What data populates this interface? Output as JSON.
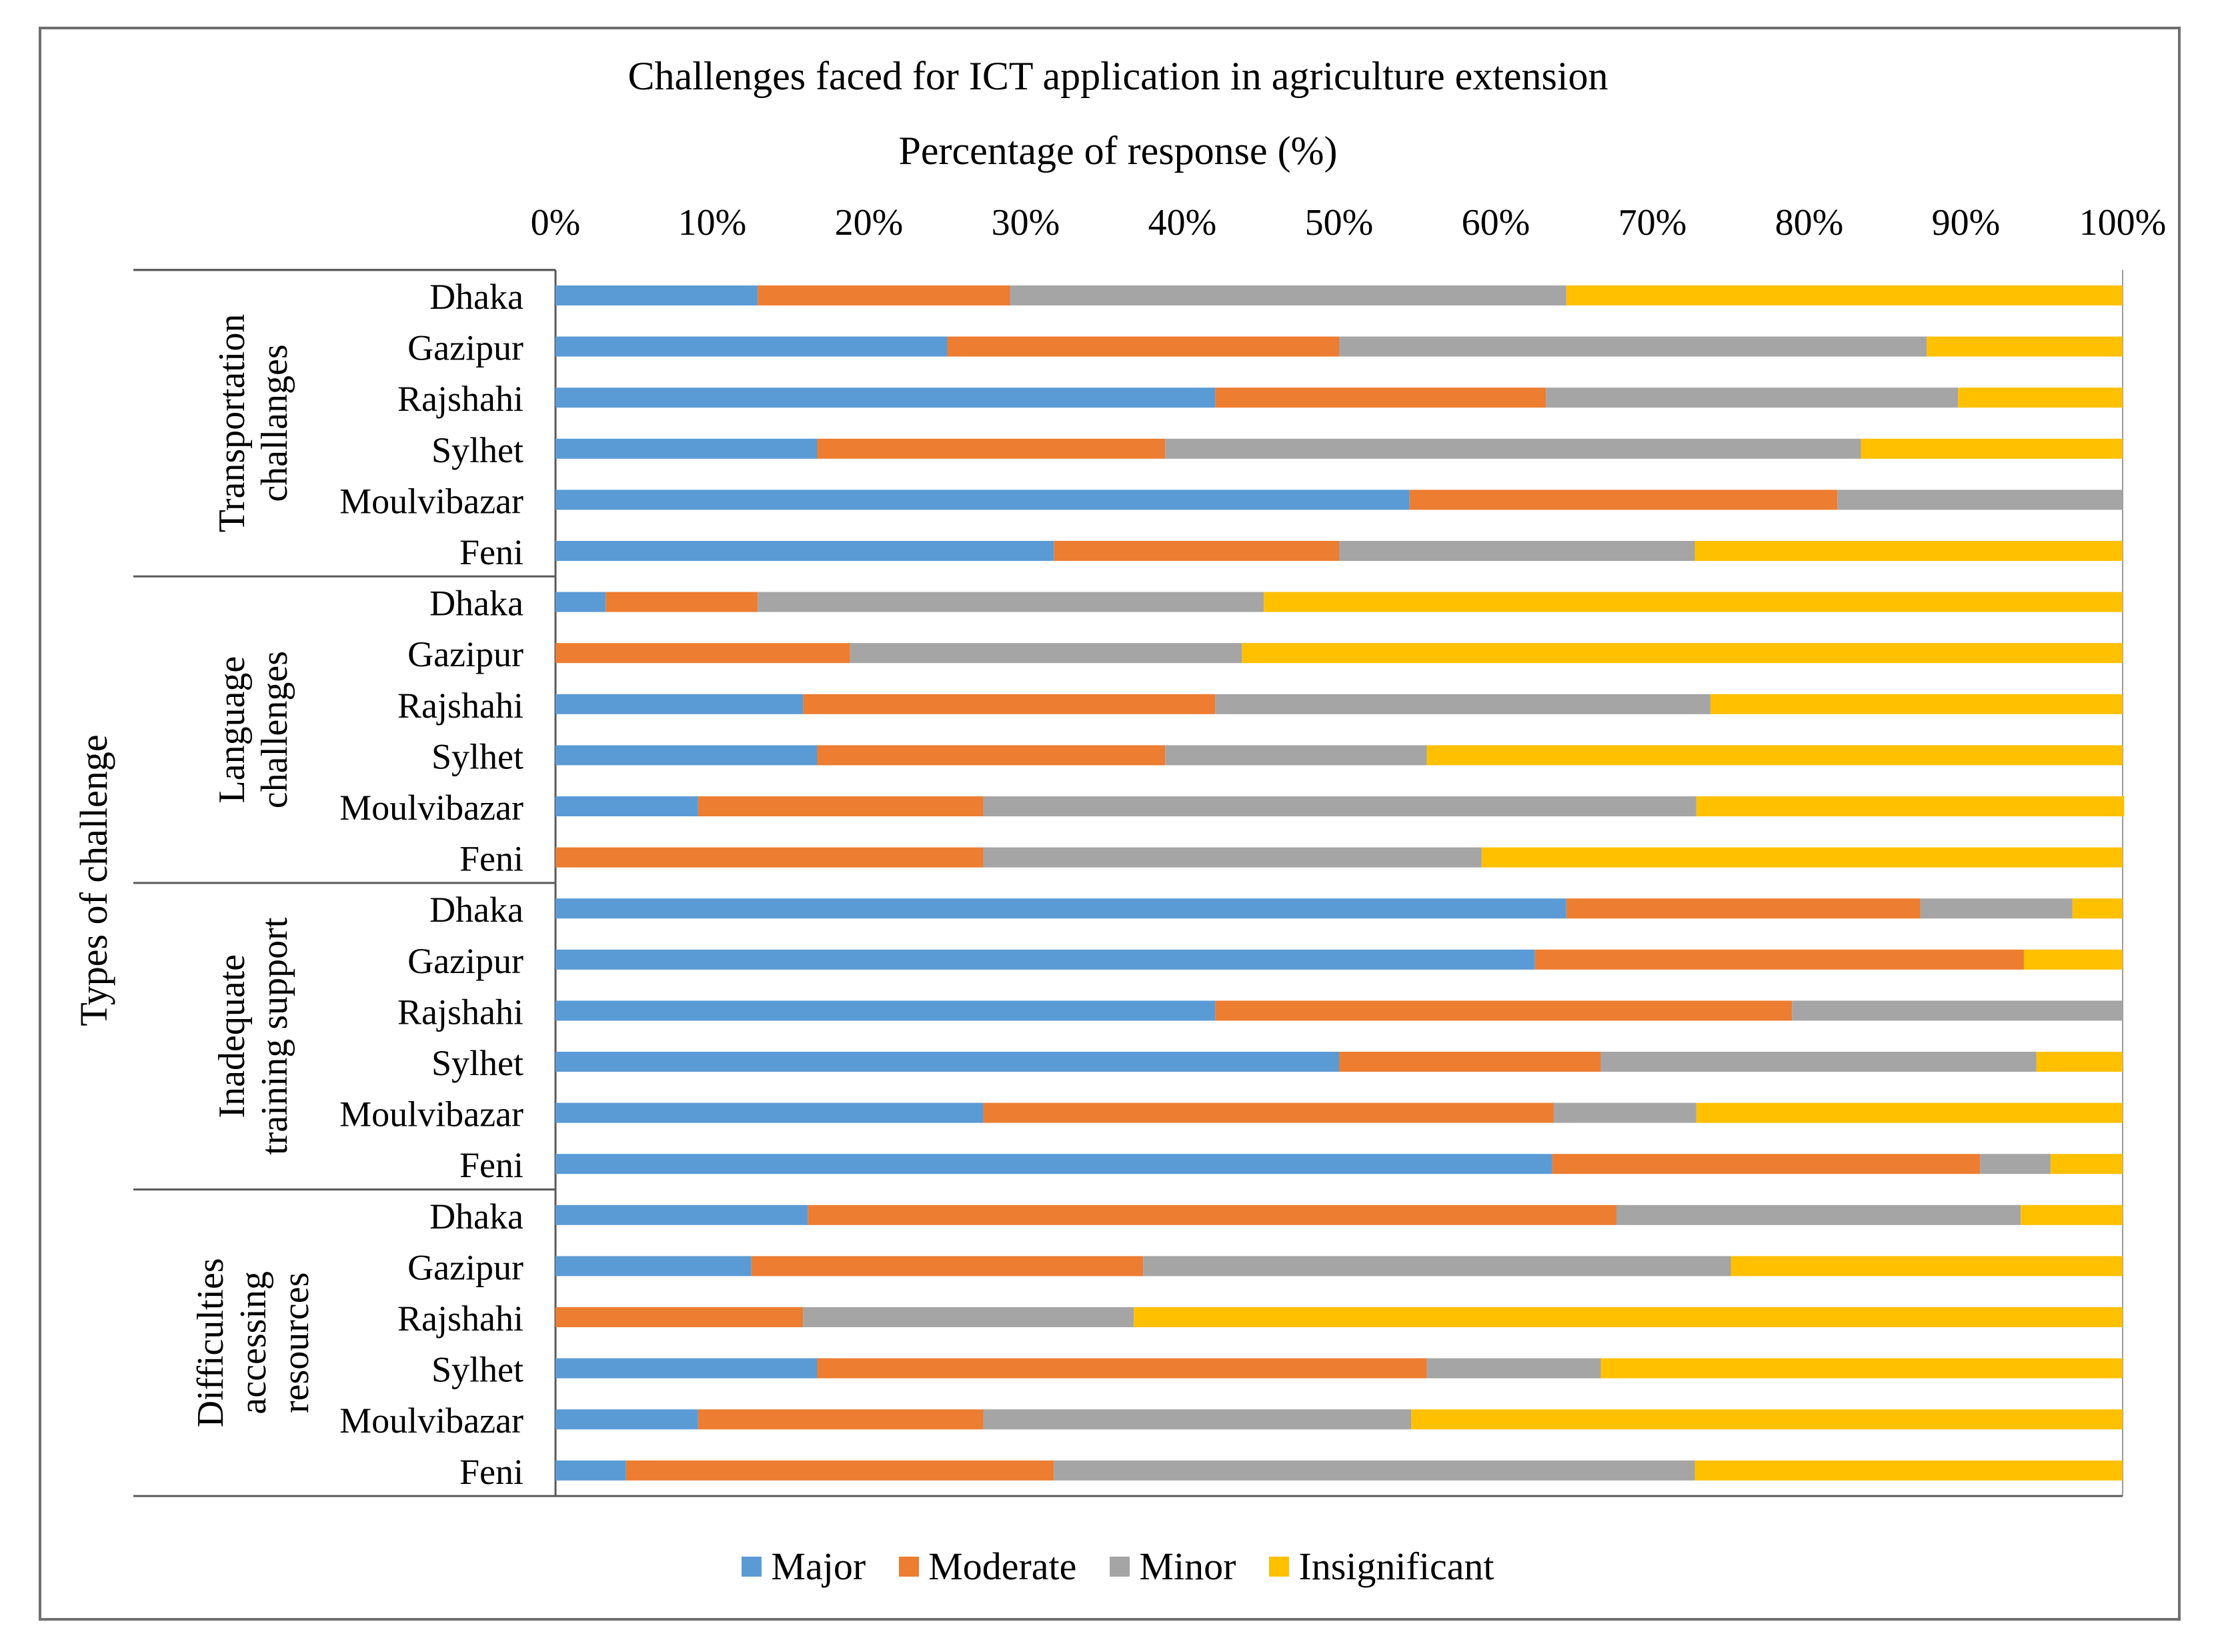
{
  "chart_data": {
    "type": "bar",
    "orientation": "horizontal-stacked-100",
    "title": "Challenges faced for ICT application in agriculture extension",
    "xlabel": "Percentage of response (%)",
    "ylabel": "Types of challenge",
    "xlim": [
      0,
      100
    ],
    "x_ticks": [
      "0%",
      "10%",
      "20%",
      "30%",
      "40%",
      "50%",
      "60%",
      "70%",
      "80%",
      "90%",
      "100%"
    ],
    "legend_position": "bottom",
    "series_order": [
      "Major",
      "Moderate",
      "Minor",
      "Insignificant"
    ],
    "colors": {
      "Major": "#5b9bd5",
      "Moderate": "#ed7d31",
      "Minor": "#a5a5a5",
      "Insignificant": "#ffc000"
    },
    "groups": [
      {
        "name": "Transportation challanges",
        "label_lines": [
          "Transportation",
          "challanges"
        ],
        "rows": [
          {
            "label": "Dhaka",
            "values": [
              12.9,
              16.1,
              35.5,
              35.5
            ]
          },
          {
            "label": "Gazipur",
            "values": [
              25.0,
              25.0,
              37.5,
              12.5
            ]
          },
          {
            "label": "Rajshahi",
            "values": [
              42.1,
              21.1,
              26.3,
              10.5
            ]
          },
          {
            "label": "Sylhet",
            "values": [
              16.7,
              22.2,
              44.4,
              16.7
            ]
          },
          {
            "label": "Moulvibazar",
            "values": [
              54.5,
              27.3,
              18.2,
              0
            ]
          },
          {
            "label": "Feni",
            "values": [
              31.8,
              18.2,
              22.7,
              27.3
            ]
          }
        ]
      },
      {
        "name": "Language challenges",
        "label_lines": [
          "Language",
          "challenges"
        ],
        "rows": [
          {
            "label": "Dhaka",
            "values": [
              3.2,
              9.7,
              32.3,
              54.8
            ]
          },
          {
            "label": "Gazipur",
            "values": [
              0,
              18.8,
              25.0,
              56.2
            ]
          },
          {
            "label": "Rajshahi",
            "values": [
              15.8,
              26.3,
              31.6,
              26.3
            ]
          },
          {
            "label": "Sylhet",
            "values": [
              16.7,
              22.2,
              16.7,
              44.4
            ]
          },
          {
            "label": "Moulvibazar",
            "values": [
              9.1,
              18.2,
              45.5,
              27.3
            ]
          },
          {
            "label": "Feni",
            "values": [
              0,
              27.3,
              31.8,
              40.9
            ]
          }
        ]
      },
      {
        "name": "Inadequate training support",
        "label_lines": [
          "Inadequate",
          "training support"
        ],
        "rows": [
          {
            "label": "Dhaka",
            "values": [
              64.5,
              22.6,
              9.7,
              3.2
            ]
          },
          {
            "label": "Gazipur",
            "values": [
              62.5,
              31.2,
              0,
              6.3
            ]
          },
          {
            "label": "Rajshahi",
            "values": [
              42.1,
              36.8,
              21.1,
              0
            ]
          },
          {
            "label": "Sylhet",
            "values": [
              50.0,
              16.7,
              27.8,
              5.5
            ]
          },
          {
            "label": "Moulvibazar",
            "values": [
              27.3,
              36.4,
              9.1,
              27.2
            ]
          },
          {
            "label": "Feni",
            "values": [
              63.6,
              27.3,
              4.5,
              4.6
            ]
          }
        ]
      },
      {
        "name": "Difficulties accessing resources",
        "label_lines": [
          "Difficulties",
          "accessing",
          "resources"
        ],
        "rows": [
          {
            "label": "Dhaka",
            "values": [
              16.1,
              51.6,
              25.8,
              6.5
            ]
          },
          {
            "label": "Gazipur",
            "values": [
              12.5,
              25.0,
              37.5,
              25.0
            ]
          },
          {
            "label": "Rajshahi",
            "values": [
              0,
              15.8,
              21.1,
              63.1
            ]
          },
          {
            "label": "Sylhet",
            "values": [
              16.7,
              38.9,
              11.1,
              33.3
            ]
          },
          {
            "label": "Moulvibazar",
            "values": [
              9.1,
              18.2,
              27.3,
              45.4
            ]
          },
          {
            "label": "Feni",
            "values": [
              4.5,
              27.3,
              40.9,
              27.3
            ]
          }
        ]
      }
    ]
  }
}
